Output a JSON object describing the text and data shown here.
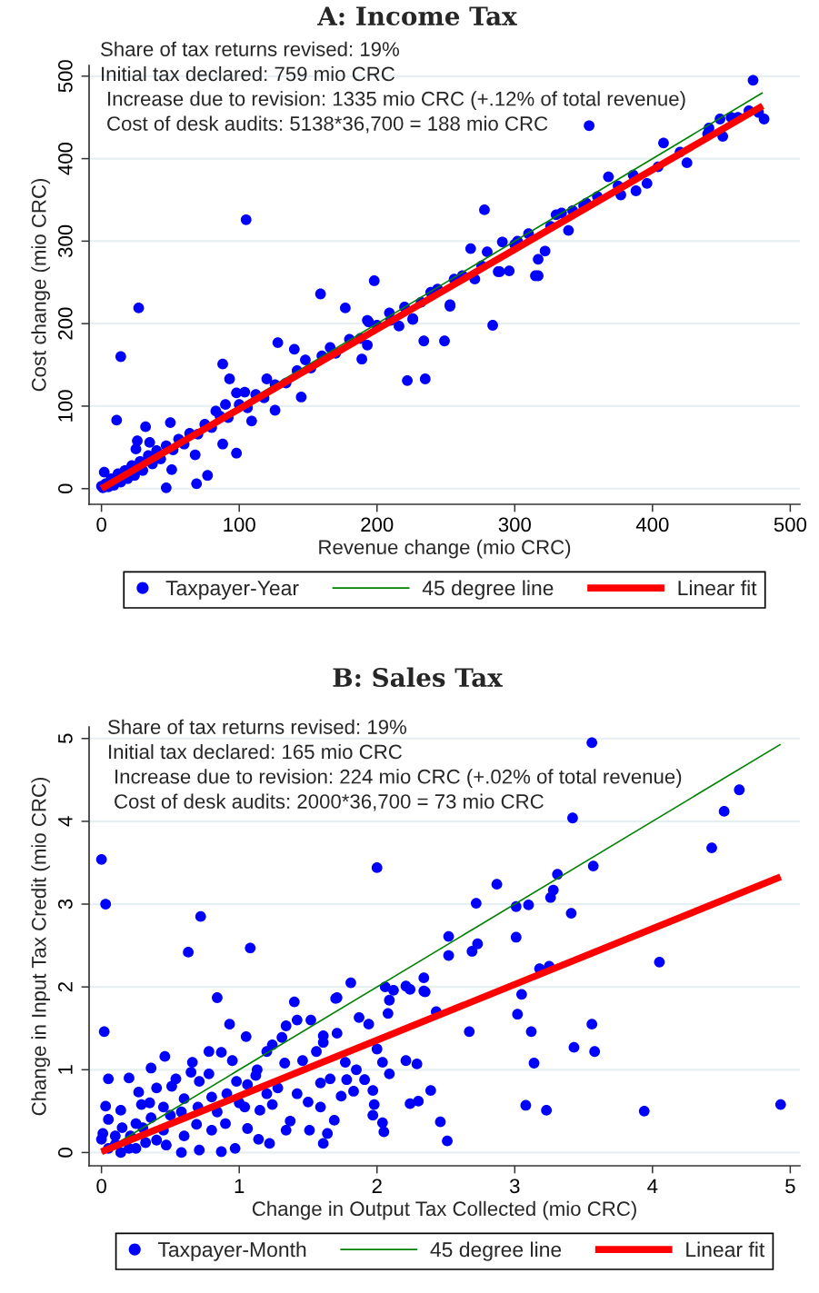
{
  "chart_data": [
    {
      "type": "scatter",
      "title": "A: Income Tax",
      "xlabel": "Revenue change (mio CRC)",
      "ylabel": "Cost change (mio CRC)",
      "annotations": [
        "Share of tax returns revised: 19%",
        "Initial tax declared: 759 mio CRC",
        "Increase due to revision: 1335 mio CRC (+.12% of total revenue)",
        "Cost of desk audits: 5138*36,700 = 188 mio CRC"
      ],
      "series": [
        {
          "name": "Taxpayer-Year",
          "color": "#0000ff",
          "marker": "circle",
          "x": [
            473,
            354,
            105,
            27,
            159,
            177,
            198,
            278,
            268,
            280,
            291,
            302,
            310,
            322,
            317,
            317,
            296,
            289,
            339,
            330,
            334,
            368,
            375,
            377,
            388,
            396,
            408,
            425,
            441,
            451,
            449,
            457,
            477,
            481,
            404,
            360,
            352,
            342,
            284,
            194,
            256,
            239,
            253,
            226,
            14,
            234,
            249,
            222,
            235,
            128,
            140,
            88,
            93,
            145,
            126,
            109,
            98,
            77,
            69,
            47,
            51,
            11,
            32,
            50,
            25,
            26,
            35,
            68,
            88,
            83,
            90,
            98,
            104,
            120,
            148,
            166,
            193,
            189,
            193,
            209,
            216,
            226,
            253,
            271,
            288,
            315,
            2,
            0,
            1,
            3,
            5,
            7,
            9,
            12,
            14,
            17,
            19,
            22,
            24,
            28,
            30,
            34,
            37,
            40,
            43,
            47,
            52,
            56,
            60,
            64,
            70,
            75,
            80,
            86,
            92,
            100,
            106,
            112,
            118,
            126,
            134,
            142,
            152,
            160,
            170,
            180,
            188,
            200,
            210,
            220,
            232,
            244,
            262,
            276,
            300,
            326,
            350,
            386,
            420,
            440,
            462,
            470
          ],
          "values": [
            495,
            440,
            326,
            219,
            236,
            219,
            252,
            338,
            291,
            287,
            299,
            300,
            309,
            288,
            278,
            258,
            264,
            263,
            313,
            332,
            334,
            378,
            367,
            356,
            361,
            370,
            419,
            395,
            437,
            427,
            448,
            450,
            456,
            448,
            390,
            354,
            346,
            337,
            198,
            202,
            254,
            238,
            221,
            205,
            160,
            179,
            179,
            131,
            133,
            177,
            169,
            151,
            133,
            111,
            95,
            82,
            43,
            16,
            6,
            1,
            23,
            83,
            75,
            80,
            48,
            58,
            56,
            41,
            54,
            94,
            102,
            116,
            117,
            133,
            156,
            171,
            204,
            157,
            174,
            213,
            197,
            206,
            223,
            254,
            263,
            258,
            20,
            3,
            1,
            6,
            2,
            12,
            4,
            18,
            8,
            22,
            12,
            28,
            16,
            33,
            22,
            40,
            30,
            46,
            36,
            52,
            47,
            60,
            54,
            67,
            66,
            78,
            74,
            88,
            86,
            102,
            98,
            114,
            110,
            126,
            128,
            143,
            146,
            161,
            164,
            181,
            182,
            198,
            204,
            220,
            226,
            242,
            258,
            270,
            296,
            318,
            343,
            380,
            408,
            430,
            450,
            458
          ]
        },
        {
          "name": "45 degree line",
          "type": "line",
          "color": "#008000",
          "x": [
            0,
            480
          ],
          "values": [
            0,
            480
          ]
        },
        {
          "name": "Linear fit",
          "type": "line",
          "color": "#ff0000",
          "x": [
            0,
            480
          ],
          "values": [
            0,
            464
          ]
        }
      ],
      "xlim": [
        -9,
        507
      ],
      "ylim": [
        -19,
        513
      ],
      "xticks": [
        0,
        100,
        200,
        300,
        400,
        500
      ],
      "yticks": [
        0,
        100,
        200,
        300,
        400,
        500
      ],
      "grid": "y",
      "legend": "bottom"
    },
    {
      "type": "scatter",
      "title": "B: Sales Tax",
      "xlabel": "Change in Output Tax Collected (mio CRC)",
      "ylabel": "Change in Input Tax Credit (mio CRC)",
      "annotations": [
        "Share of tax returns revised: 19%",
        "Initial tax declared: 165 mio CRC",
        "Increase due to revision: 224 mio CRC (+.02% of total revenue)",
        "Cost of desk audits: 2000*36,700 = 73 mio CRC"
      ],
      "series": [
        {
          "name": "Taxpayer-Month",
          "color": "#0000ff",
          "marker": "circle",
          "x": [
            3.56,
            0,
            0.03,
            0.72,
            0.63,
            1.08,
            2.0,
            2.87,
            2.72,
            3.01,
            3.1,
            3.31,
            3.28,
            3.26,
            3.42,
            3.57,
            3.41,
            4.43,
            4.52,
            4.63,
            4.05,
            3.01,
            2.73,
            2.69,
            2.52,
            2.52,
            3.18,
            3.25,
            3.05,
            2.34,
            2.35,
            1.81,
            2.06,
            2.21,
            2.24,
            0.84,
            1.71,
            3.02,
            3.12,
            2.67,
            3.56,
            3.43,
            3.58,
            3.14,
            3.08,
            3.23,
            3.94,
            4.93,
            0.02,
            0.93,
            1.05,
            1.4,
            1.7,
            1.42,
            1.34,
            1.31,
            1.52,
            1.61,
            1.71,
            1.87,
            1.94,
            2.12,
            2.34,
            2.09,
            2.08,
            2.43,
            2.0,
            2.04,
            2.09,
            2.21,
            2.29,
            2.39,
            2.3,
            2.24,
            2.46,
            2.51,
            2.04,
            2.05,
            1.98,
            1.97,
            1.91,
            1.97,
            1.83,
            1.78,
            1.74,
            1.66,
            1.59,
            1.85,
            1.77,
            1.69,
            1.64,
            1.61,
            1.59,
            1.51,
            1.5,
            1.42,
            1.37,
            1.34,
            1.22,
            1.14,
            1.15,
            1.24,
            1.28,
            1.33,
            1.12,
            1.04,
            0.97,
            1.06,
            0.95,
            0.87,
            0.78,
            0.66,
            0.46,
            0.36,
            0.2,
            0.05,
            0.27,
            0.54,
            0.65,
            0.4,
            0.51,
            0.03,
            0.14,
            0.29,
            0.05,
            0.01,
            0.0,
            0.58,
            0.87,
            0.71,
            0.47,
            0.25,
            0.14,
            0.8,
            0.69,
            0.58,
            0.84,
            0.91,
            0.8,
            0.71,
            0.98,
            0.78,
            0.36,
            0.45,
            0.1,
            0.21,
            0.32,
            1.46,
            1.56,
            1.61,
            1.13,
            1.2,
            1.24,
            1.06,
            1.2,
            0.05,
            0.1,
            0.2,
            0.3,
            0.4,
            0.5,
            0.6,
            0.15,
            0.35,
            0.6,
            0.45,
            0.7,
            0.9,
            1.0,
            0.25
          ],
          "values": [
            4.95,
            3.54,
            3.0,
            2.85,
            2.42,
            2.47,
            3.44,
            3.24,
            3.01,
            2.97,
            2.99,
            3.36,
            3.17,
            3.08,
            4.04,
            3.46,
            2.89,
            3.68,
            4.12,
            4.38,
            2.3,
            2.6,
            2.52,
            2.43,
            2.61,
            2.38,
            2.22,
            2.25,
            1.91,
            2.11,
            1.94,
            2.05,
            2.0,
            2.01,
            1.97,
            1.87,
            1.87,
            1.67,
            1.46,
            1.46,
            1.55,
            1.27,
            1.22,
            1.08,
            0.57,
            0.51,
            0.5,
            0.58,
            1.46,
            1.55,
            1.4,
            1.82,
            1.86,
            1.6,
            1.53,
            1.39,
            1.6,
            1.41,
            1.44,
            1.63,
            1.55,
            1.96,
            1.95,
            1.84,
            1.68,
            1.7,
            1.25,
            1.09,
            0.95,
            1.11,
            1.07,
            0.75,
            0.62,
            0.59,
            0.37,
            0.14,
            0.36,
            0.25,
            0.58,
            0.45,
            0.88,
            0.75,
            0.74,
            0.88,
            0.68,
            0.89,
            0.84,
            1.0,
            1.09,
            0.39,
            0.23,
            0.11,
            0.55,
            0.27,
            0.61,
            0.71,
            0.38,
            0.27,
            0.11,
            0.16,
            0.51,
            0.58,
            0.78,
            1.08,
            0.93,
            0.55,
            0.05,
            0.29,
            1.11,
            1.21,
            1.22,
            1.09,
            1.16,
            1.02,
            0.9,
            0.89,
            0.73,
            0.89,
            0.97,
            0.78,
            0.8,
            0.56,
            0.51,
            0.58,
            0.4,
            0.23,
            0.16,
            0.0,
            0.01,
            0.03,
            0.09,
            0.05,
            0.0,
            0.27,
            0.34,
            0.49,
            0.49,
            0.71,
            0.67,
            0.86,
            0.86,
            0.95,
            0.42,
            0.27,
            0.2,
            0.2,
            0.12,
            1.11,
            1.22,
            1.33,
            1.0,
            1.22,
            1.3,
            0.82,
            0.71,
            0.05,
            0.1,
            0.05,
            0.3,
            0.15,
            0.45,
            0.2,
            0.3,
            0.6,
            0.65,
            0.55,
            0.55,
            0.35,
            0.6,
            0.35
          ]
        },
        {
          "name": "45 degree line",
          "type": "line",
          "color": "#008000",
          "x": [
            0,
            4.93
          ],
          "values": [
            0,
            4.93
          ]
        },
        {
          "name": "Linear fit",
          "type": "line",
          "color": "#ff0000",
          "x": [
            0,
            4.93
          ],
          "values": [
            0.01,
            3.33
          ]
        }
      ],
      "xlim": [
        -0.09,
        5.07
      ],
      "ylim": [
        -0.16,
        5.14
      ],
      "xticks": [
        0,
        1,
        2,
        3,
        4,
        5
      ],
      "yticks": [
        0,
        1,
        2,
        3,
        4,
        5
      ],
      "grid": "y",
      "legend": "bottom"
    }
  ]
}
